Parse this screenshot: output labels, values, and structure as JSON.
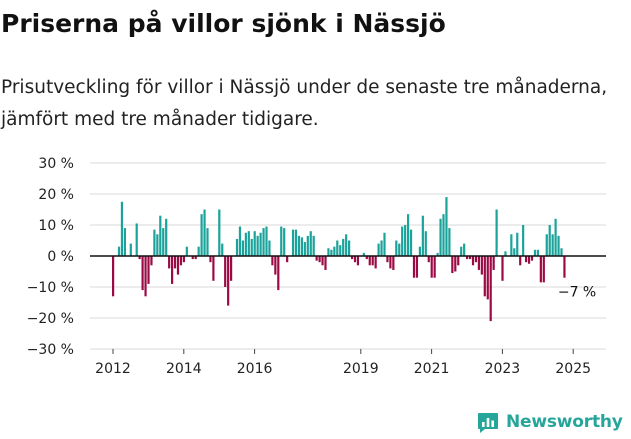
{
  "title": "Priserna på villor sjönk i Nässjö",
  "subtitle": "Prisutveckling för villor i Nässjö under de senaste tre månaderna, jämfört med tre månader tidigare.",
  "brand": {
    "name": "Newsworthy",
    "icon": "chart-logo-icon"
  },
  "colors": {
    "positive": "#1aa39a",
    "negative": "#9c0a45",
    "grid": "#d9d9d9",
    "axis": "#222222",
    "brand": "#26a69a"
  },
  "chart_data": {
    "type": "bar",
    "title": "",
    "xlabel": "",
    "ylabel": "",
    "ylim": [
      -30,
      30
    ],
    "yticks": [
      -30,
      -20,
      -10,
      0,
      10,
      20,
      30
    ],
    "ytick_labels": [
      "−30 %",
      "−20 %",
      "−10 %",
      "0 %",
      "10 %",
      "20 %",
      "30 %"
    ],
    "xlim": [
      "2011-12",
      "2025-09"
    ],
    "xtick_labels": [
      "2012",
      "2014",
      "2016",
      "2019",
      "2021",
      "2023",
      "2025"
    ],
    "xtick_dates": [
      "2012-01",
      "2014-01",
      "2016-01",
      "2019-01",
      "2021-01",
      "2023-01",
      "2025-01"
    ],
    "grid": true,
    "legend": "none",
    "annotation": {
      "text": "−7 %",
      "date": "2025-04",
      "value": -7
    },
    "series": [
      {
        "values": [
          {
            "date": "2012-01",
            "value": -13
          },
          {
            "date": "2012-02",
            "value": 0
          },
          {
            "date": "2012-03",
            "value": 3
          },
          {
            "date": "2012-04",
            "value": 17.5
          },
          {
            "date": "2012-05",
            "value": 9
          },
          {
            "date": "2012-06",
            "value": 0
          },
          {
            "date": "2012-07",
            "value": 4
          },
          {
            "date": "2012-08",
            "value": 0
          },
          {
            "date": "2012-09",
            "value": 10.5
          },
          {
            "date": "2012-10",
            "value": -1
          },
          {
            "date": "2012-11",
            "value": -11
          },
          {
            "date": "2012-12",
            "value": -13
          },
          {
            "date": "2013-01",
            "value": -9
          },
          {
            "date": "2013-02",
            "value": -3
          },
          {
            "date": "2013-03",
            "value": 8.5
          },
          {
            "date": "2013-04",
            "value": 7
          },
          {
            "date": "2013-05",
            "value": 13
          },
          {
            "date": "2013-06",
            "value": 9
          },
          {
            "date": "2013-07",
            "value": 12
          },
          {
            "date": "2013-08",
            "value": -4
          },
          {
            "date": "2013-09",
            "value": -9
          },
          {
            "date": "2013-10",
            "value": -4
          },
          {
            "date": "2013-11",
            "value": -6
          },
          {
            "date": "2013-12",
            "value": -3
          },
          {
            "date": "2014-01",
            "value": -2
          },
          {
            "date": "2014-02",
            "value": 3
          },
          {
            "date": "2014-03",
            "value": 0
          },
          {
            "date": "2014-04",
            "value": -1
          },
          {
            "date": "2014-05",
            "value": -1
          },
          {
            "date": "2014-06",
            "value": 3
          },
          {
            "date": "2014-07",
            "value": 13.5
          },
          {
            "date": "2014-08",
            "value": 15
          },
          {
            "date": "2014-09",
            "value": 9
          },
          {
            "date": "2014-10",
            "value": -2
          },
          {
            "date": "2014-11",
            "value": -8
          },
          {
            "date": "2014-12",
            "value": 0
          },
          {
            "date": "2015-01",
            "value": 15
          },
          {
            "date": "2015-02",
            "value": 4
          },
          {
            "date": "2015-03",
            "value": -10
          },
          {
            "date": "2015-04",
            "value": -16
          },
          {
            "date": "2015-05",
            "value": -8
          },
          {
            "date": "2015-06",
            "value": 0
          },
          {
            "date": "2015-07",
            "value": 5.5
          },
          {
            "date": "2015-08",
            "value": 9.5
          },
          {
            "date": "2015-09",
            "value": 5
          },
          {
            "date": "2015-10",
            "value": 7.5
          },
          {
            "date": "2015-11",
            "value": 8
          },
          {
            "date": "2015-12",
            "value": 5.5
          },
          {
            "date": "2016-01",
            "value": 8
          },
          {
            "date": "2016-02",
            "value": 6.5
          },
          {
            "date": "2016-03",
            "value": 7.5
          },
          {
            "date": "2016-04",
            "value": 9
          },
          {
            "date": "2016-05",
            "value": 9.5
          },
          {
            "date": "2016-06",
            "value": 5
          },
          {
            "date": "2016-07",
            "value": -3
          },
          {
            "date": "2016-08",
            "value": -6
          },
          {
            "date": "2016-09",
            "value": -11
          },
          {
            "date": "2016-10",
            "value": 9.5
          },
          {
            "date": "2016-11",
            "value": 9
          },
          {
            "date": "2016-12",
            "value": -2
          },
          {
            "date": "2017-01",
            "value": 0
          },
          {
            "date": "2017-02",
            "value": 8.5
          },
          {
            "date": "2017-03",
            "value": 8.5
          },
          {
            "date": "2017-04",
            "value": 6.5
          },
          {
            "date": "2017-05",
            "value": 6
          },
          {
            "date": "2017-06",
            "value": 4.5
          },
          {
            "date": "2017-07",
            "value": 6.5
          },
          {
            "date": "2017-08",
            "value": 8
          },
          {
            "date": "2017-09",
            "value": 6.5
          },
          {
            "date": "2017-10",
            "value": -1.5
          },
          {
            "date": "2017-11",
            "value": -2
          },
          {
            "date": "2017-12",
            "value": -3
          },
          {
            "date": "2018-01",
            "value": -4.5
          },
          {
            "date": "2018-02",
            "value": 2.5
          },
          {
            "date": "2018-03",
            "value": 2
          },
          {
            "date": "2018-04",
            "value": 3
          },
          {
            "date": "2018-05",
            "value": 5
          },
          {
            "date": "2018-06",
            "value": 3.5
          },
          {
            "date": "2018-07",
            "value": 5.5
          },
          {
            "date": "2018-08",
            "value": 7
          },
          {
            "date": "2018-09",
            "value": 5
          },
          {
            "date": "2018-10",
            "value": -1
          },
          {
            "date": "2018-11",
            "value": -2
          },
          {
            "date": "2018-12",
            "value": -3
          },
          {
            "date": "2019-01",
            "value": 0
          },
          {
            "date": "2019-02",
            "value": 1
          },
          {
            "date": "2019-03",
            "value": -1
          },
          {
            "date": "2019-04",
            "value": -3
          },
          {
            "date": "2019-05",
            "value": -3
          },
          {
            "date": "2019-06",
            "value": -4
          },
          {
            "date": "2019-07",
            "value": 4
          },
          {
            "date": "2019-08",
            "value": 5
          },
          {
            "date": "2019-09",
            "value": 7.5
          },
          {
            "date": "2019-10",
            "value": -2
          },
          {
            "date": "2019-11",
            "value": -4
          },
          {
            "date": "2019-12",
            "value": -4.5
          },
          {
            "date": "2020-01",
            "value": 5
          },
          {
            "date": "2020-02",
            "value": 4
          },
          {
            "date": "2020-03",
            "value": 9.5
          },
          {
            "date": "2020-04",
            "value": 10
          },
          {
            "date": "2020-05",
            "value": 13.5
          },
          {
            "date": "2020-06",
            "value": 8.5
          },
          {
            "date": "2020-07",
            "value": -7
          },
          {
            "date": "2020-08",
            "value": -7
          },
          {
            "date": "2020-09",
            "value": 3
          },
          {
            "date": "2020-10",
            "value": 13
          },
          {
            "date": "2020-11",
            "value": 8
          },
          {
            "date": "2020-12",
            "value": -2
          },
          {
            "date": "2021-01",
            "value": -7
          },
          {
            "date": "2021-02",
            "value": -7
          },
          {
            "date": "2021-03",
            "value": 1
          },
          {
            "date": "2021-04",
            "value": 12
          },
          {
            "date": "2021-05",
            "value": 13.5
          },
          {
            "date": "2021-06",
            "value": 19
          },
          {
            "date": "2021-07",
            "value": 9
          },
          {
            "date": "2021-08",
            "value": -5.5
          },
          {
            "date": "2021-09",
            "value": -5
          },
          {
            "date": "2021-10",
            "value": -3
          },
          {
            "date": "2021-11",
            "value": 3
          },
          {
            "date": "2021-12",
            "value": 4
          },
          {
            "date": "2022-01",
            "value": -1
          },
          {
            "date": "2022-02",
            "value": -1
          },
          {
            "date": "2022-03",
            "value": -3
          },
          {
            "date": "2022-04",
            "value": -2
          },
          {
            "date": "2022-05",
            "value": -4.5
          },
          {
            "date": "2022-06",
            "value": -6
          },
          {
            "date": "2022-07",
            "value": -13
          },
          {
            "date": "2022-08",
            "value": -14
          },
          {
            "date": "2022-09",
            "value": -21
          },
          {
            "date": "2022-10",
            "value": -4.5
          },
          {
            "date": "2022-11",
            "value": 15
          },
          {
            "date": "2022-12",
            "value": 0
          },
          {
            "date": "2023-01",
            "value": -8
          },
          {
            "date": "2023-02",
            "value": 1.5
          },
          {
            "date": "2023-03",
            "value": 0
          },
          {
            "date": "2023-04",
            "value": 7
          },
          {
            "date": "2023-05",
            "value": 2.5
          },
          {
            "date": "2023-06",
            "value": 7.5
          },
          {
            "date": "2023-07",
            "value": -3
          },
          {
            "date": "2023-08",
            "value": 10
          },
          {
            "date": "2023-09",
            "value": -2
          },
          {
            "date": "2023-10",
            "value": -2.5
          },
          {
            "date": "2023-11",
            "value": -1.5
          },
          {
            "date": "2023-12",
            "value": 2
          },
          {
            "date": "2024-01",
            "value": 2
          },
          {
            "date": "2024-02",
            "value": -8.5
          },
          {
            "date": "2024-03",
            "value": -8.5
          },
          {
            "date": "2024-04",
            "value": 7
          },
          {
            "date": "2024-05",
            "value": 10
          },
          {
            "date": "2024-06",
            "value": 7
          },
          {
            "date": "2024-07",
            "value": 12
          },
          {
            "date": "2024-08",
            "value": 6.5
          },
          {
            "date": "2024-09",
            "value": 2.5
          },
          {
            "date": "2024-10",
            "value": -7
          }
        ]
      }
    ]
  }
}
